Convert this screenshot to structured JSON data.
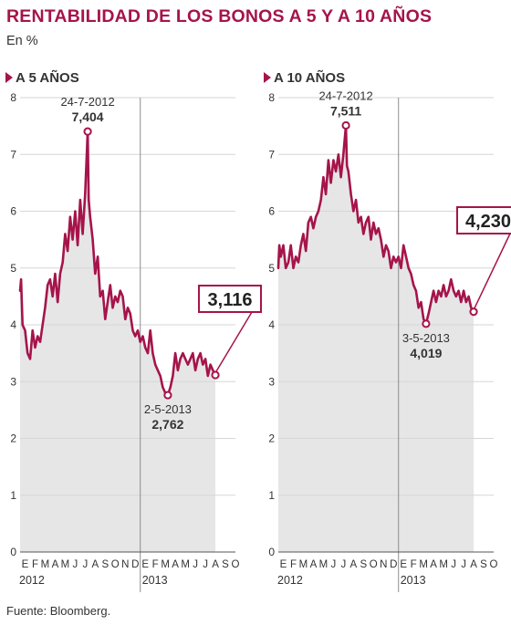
{
  "title": "RENTABILIDAD DE LOS BONOS A 5 Y A 10 AÑOS",
  "subtitle": "En %",
  "source": "Fuente: Bloomberg.",
  "colors": {
    "series": "#a5144a",
    "area": "#e6e6e6",
    "grid": "#d6d6d6"
  },
  "chart_data": [
    {
      "type": "area",
      "panel_title": "A 5 AÑOS",
      "ylim": [
        0,
        8
      ],
      "yticks": [
        "0",
        "1",
        "2",
        "3",
        "4",
        "5",
        "6",
        "7",
        "8"
      ],
      "month_labels": [
        "E",
        "F",
        "M",
        "A",
        "M",
        "J",
        "J",
        "A",
        "S",
        "O",
        "N",
        "D",
        "E",
        "F",
        "M",
        "A",
        "M",
        "J",
        "J",
        "A",
        "S",
        "O"
      ],
      "year_labels": [
        {
          "label": "2012",
          "month_index": 0
        },
        {
          "label": "2013",
          "month_index": 12
        }
      ],
      "series": [
        {
          "values": [
            [
              0.0,
              4.6
            ],
            [
              0.1,
              4.8
            ],
            [
              0.25,
              4.0
            ],
            [
              0.5,
              3.9
            ],
            [
              0.75,
              3.5
            ],
            [
              1.0,
              3.4
            ],
            [
              1.25,
              3.9
            ],
            [
              1.5,
              3.6
            ],
            [
              1.75,
              3.8
            ],
            [
              2.0,
              3.7
            ],
            [
              2.25,
              4.0
            ],
            [
              2.5,
              4.3
            ],
            [
              2.75,
              4.7
            ],
            [
              3.0,
              4.8
            ],
            [
              3.25,
              4.5
            ],
            [
              3.5,
              4.9
            ],
            [
              3.75,
              4.4
            ],
            [
              4.0,
              4.9
            ],
            [
              4.25,
              5.1
            ],
            [
              4.5,
              5.6
            ],
            [
              4.75,
              5.3
            ],
            [
              5.0,
              5.9
            ],
            [
              5.25,
              5.5
            ],
            [
              5.5,
              6.0
            ],
            [
              5.75,
              5.4
            ],
            [
              6.0,
              6.2
            ],
            [
              6.25,
              5.6
            ],
            [
              6.5,
              6.3
            ],
            [
              6.75,
              7.404
            ],
            [
              6.85,
              6.2
            ],
            [
              7.0,
              5.9
            ],
            [
              7.25,
              5.5
            ],
            [
              7.5,
              4.9
            ],
            [
              7.75,
              5.2
            ],
            [
              8.0,
              4.5
            ],
            [
              8.25,
              4.6
            ],
            [
              8.5,
              4.1
            ],
            [
              8.75,
              4.4
            ],
            [
              9.0,
              4.7
            ],
            [
              9.25,
              4.3
            ],
            [
              9.5,
              4.5
            ],
            [
              9.75,
              4.4
            ],
            [
              10.0,
              4.6
            ],
            [
              10.25,
              4.5
            ],
            [
              10.5,
              4.1
            ],
            [
              10.75,
              4.3
            ],
            [
              11.0,
              4.2
            ],
            [
              11.25,
              3.9
            ],
            [
              11.5,
              3.8
            ],
            [
              11.75,
              3.9
            ],
            [
              12.0,
              3.7
            ],
            [
              12.25,
              3.8
            ],
            [
              12.5,
              3.6
            ],
            [
              12.75,
              3.5
            ],
            [
              13.0,
              3.9
            ],
            [
              13.25,
              3.5
            ],
            [
              13.5,
              3.3
            ],
            [
              13.75,
              3.2
            ],
            [
              14.0,
              3.1
            ],
            [
              14.25,
              2.9
            ],
            [
              14.5,
              2.8
            ],
            [
              14.75,
              2.762
            ],
            [
              15.0,
              2.9
            ],
            [
              15.25,
              3.1
            ],
            [
              15.5,
              3.5
            ],
            [
              15.75,
              3.2
            ],
            [
              16.0,
              3.4
            ],
            [
              16.25,
              3.5
            ],
            [
              16.5,
              3.4
            ],
            [
              16.75,
              3.3
            ],
            [
              17.0,
              3.4
            ],
            [
              17.25,
              3.5
            ],
            [
              17.5,
              3.2
            ],
            [
              17.75,
              3.4
            ],
            [
              18.0,
              3.5
            ],
            [
              18.25,
              3.3
            ],
            [
              18.5,
              3.4
            ],
            [
              18.75,
              3.1
            ],
            [
              19.0,
              3.3
            ],
            [
              19.25,
              3.2
            ],
            [
              19.5,
              3.116
            ]
          ]
        }
      ],
      "annotations": [
        {
          "date": "24-7-2012",
          "value": "7,404",
          "x": 6.75,
          "y": 7.404,
          "position": "above"
        },
        {
          "date": "2-5-2013",
          "value": "2,762",
          "x": 14.75,
          "y": 2.762,
          "position": "below"
        }
      ],
      "callout": {
        "value": "3,116",
        "x": 19.5,
        "y": 3.116
      }
    },
    {
      "type": "area",
      "panel_title": "A 10 AÑOS",
      "ylim": [
        0,
        8
      ],
      "yticks": [
        "0",
        "1",
        "2",
        "3",
        "4",
        "5",
        "6",
        "7",
        "8"
      ],
      "month_labels": [
        "E",
        "F",
        "M",
        "A",
        "M",
        "J",
        "J",
        "A",
        "S",
        "O",
        "N",
        "D",
        "E",
        "F",
        "M",
        "A",
        "M",
        "J",
        "J",
        "A",
        "S",
        "O"
      ],
      "year_labels": [
        {
          "label": "2012",
          "month_index": 0
        },
        {
          "label": "2013",
          "month_index": 12
        }
      ],
      "series": [
        {
          "values": [
            [
              0.0,
              5.0
            ],
            [
              0.1,
              5.4
            ],
            [
              0.25,
              5.2
            ],
            [
              0.5,
              5.4
            ],
            [
              0.75,
              5.0
            ],
            [
              1.0,
              5.1
            ],
            [
              1.25,
              5.4
            ],
            [
              1.5,
              5.0
            ],
            [
              1.75,
              5.2
            ],
            [
              2.0,
              5.1
            ],
            [
              2.25,
              5.4
            ],
            [
              2.5,
              5.6
            ],
            [
              2.75,
              5.3
            ],
            [
              3.0,
              5.8
            ],
            [
              3.25,
              5.9
            ],
            [
              3.5,
              5.7
            ],
            [
              3.75,
              5.9
            ],
            [
              4.0,
              6.0
            ],
            [
              4.25,
              6.2
            ],
            [
              4.5,
              6.6
            ],
            [
              4.75,
              6.3
            ],
            [
              5.0,
              6.9
            ],
            [
              5.25,
              6.5
            ],
            [
              5.5,
              6.9
            ],
            [
              5.75,
              6.7
            ],
            [
              6.0,
              7.0
            ],
            [
              6.25,
              6.6
            ],
            [
              6.5,
              7.0
            ],
            [
              6.75,
              7.511
            ],
            [
              6.85,
              6.8
            ],
            [
              7.0,
              6.7
            ],
            [
              7.25,
              6.3
            ],
            [
              7.5,
              6.0
            ],
            [
              7.75,
              6.2
            ],
            [
              8.0,
              5.8
            ],
            [
              8.25,
              5.9
            ],
            [
              8.5,
              5.6
            ],
            [
              8.75,
              5.8
            ],
            [
              9.0,
              5.9
            ],
            [
              9.25,
              5.5
            ],
            [
              9.5,
              5.8
            ],
            [
              9.75,
              5.6
            ],
            [
              10.0,
              5.7
            ],
            [
              10.25,
              5.5
            ],
            [
              10.5,
              5.2
            ],
            [
              10.75,
              5.4
            ],
            [
              11.0,
              5.3
            ],
            [
              11.25,
              5.0
            ],
            [
              11.5,
              5.2
            ],
            [
              11.75,
              5.1
            ],
            [
              12.0,
              5.2
            ],
            [
              12.25,
              5.0
            ],
            [
              12.5,
              5.4
            ],
            [
              12.75,
              5.2
            ],
            [
              13.0,
              5.0
            ],
            [
              13.25,
              4.9
            ],
            [
              13.5,
              4.7
            ],
            [
              13.75,
              4.6
            ],
            [
              14.0,
              4.3
            ],
            [
              14.25,
              4.4
            ],
            [
              14.5,
              4.1
            ],
            [
              14.75,
              4.019
            ],
            [
              15.0,
              4.2
            ],
            [
              15.25,
              4.4
            ],
            [
              15.5,
              4.6
            ],
            [
              15.75,
              4.4
            ],
            [
              16.0,
              4.6
            ],
            [
              16.25,
              4.5
            ],
            [
              16.5,
              4.7
            ],
            [
              16.75,
              4.5
            ],
            [
              17.0,
              4.6
            ],
            [
              17.25,
              4.8
            ],
            [
              17.5,
              4.6
            ],
            [
              17.75,
              4.5
            ],
            [
              18.0,
              4.6
            ],
            [
              18.25,
              4.4
            ],
            [
              18.5,
              4.6
            ],
            [
              18.75,
              4.4
            ],
            [
              19.0,
              4.5
            ],
            [
              19.25,
              4.3
            ],
            [
              19.5,
              4.23
            ]
          ]
        }
      ],
      "annotations": [
        {
          "date": "24-7-2012",
          "value": "7,511",
          "x": 6.75,
          "y": 7.511,
          "position": "above"
        },
        {
          "date": "3-5-2013",
          "value": "4,019",
          "x": 14.75,
          "y": 4.019,
          "position": "below"
        }
      ],
      "callout": {
        "value": "4,230",
        "x": 19.5,
        "y": 4.23
      }
    }
  ]
}
